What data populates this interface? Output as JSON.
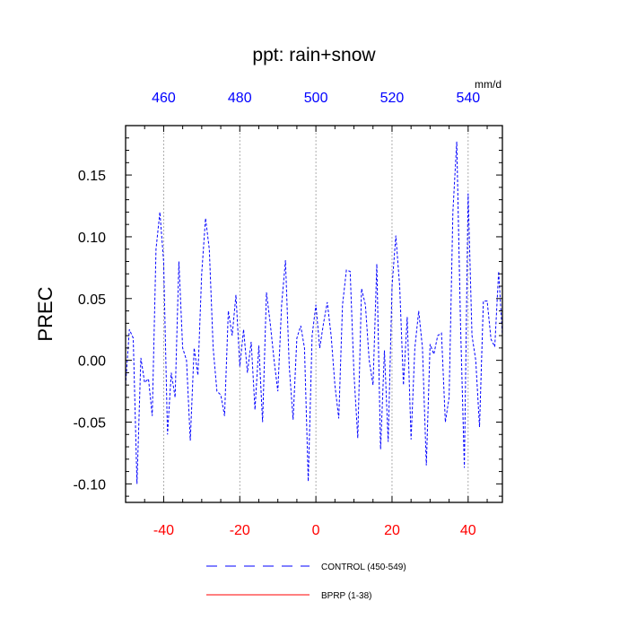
{
  "chart_data": {
    "type": "line",
    "title": "ppt: rain+snow",
    "ylabel": "PREC",
    "top_axis_units": "mm/d",
    "xlim": [
      -50,
      49
    ],
    "ylim": [
      -0.115,
      0.19
    ],
    "grid": "vertical dotted lines at bottom x ticks",
    "legend_position": "bottom-center",
    "colors": {
      "control": "#0000ff",
      "bprp": "#ff0000",
      "bottom_ticks": "#ff0000",
      "top_ticks": "#0000ff"
    },
    "bottom_ticks": [
      {
        "value": -40,
        "label": "-40"
      },
      {
        "value": -20,
        "label": "-20"
      },
      {
        "value": 0,
        "label": "0"
      },
      {
        "value": 20,
        "label": "20"
      },
      {
        "value": 40,
        "label": "40"
      }
    ],
    "top_ticks": [
      {
        "value": -40,
        "label": "460"
      },
      {
        "value": -20,
        "label": "480"
      },
      {
        "value": 0,
        "label": "500"
      },
      {
        "value": 20,
        "label": "520"
      },
      {
        "value": 40,
        "label": "540"
      }
    ],
    "y_ticks": [
      {
        "value": 0.15,
        "label": "0.15"
      },
      {
        "value": 0.1,
        "label": "0.10"
      },
      {
        "value": 0.05,
        "label": "0.05"
      },
      {
        "value": 0.0,
        "label": "0.00"
      },
      {
        "value": -0.05,
        "label": "-0.05"
      },
      {
        "value": -0.1,
        "label": "-0.10"
      }
    ],
    "series": [
      {
        "name": "CONTROL (450-549)",
        "style": "dashed",
        "color": "#0000ff",
        "x": [
          -50,
          -49,
          -48,
          -47,
          -46,
          -45,
          -44,
          -43,
          -42,
          -41,
          -40,
          -39,
          -38,
          -37,
          -36,
          -35,
          -34,
          -33,
          -32,
          -31,
          -30,
          -29,
          -28,
          -27,
          -26,
          -25,
          -24,
          -23,
          -22,
          -21,
          -20,
          -19,
          -18,
          -17,
          -16,
          -15,
          -14,
          -13,
          -12,
          -11,
          -10,
          -9,
          -8,
          -7,
          -6,
          -5,
          -4,
          -3,
          -2,
          -1,
          0,
          1,
          2,
          3,
          4,
          5,
          6,
          7,
          8,
          9,
          10,
          11,
          12,
          13,
          14,
          15,
          16,
          17,
          18,
          19,
          20,
          21,
          22,
          23,
          24,
          25,
          26,
          27,
          28,
          29,
          30,
          31,
          32,
          33,
          34,
          35,
          36,
          37,
          38,
          39,
          40,
          41,
          42,
          43,
          44,
          45,
          46,
          47,
          48,
          49
        ],
        "y": [
          -0.02,
          0.025,
          0.018,
          -0.1,
          0.002,
          -0.018,
          -0.015,
          -0.045,
          0.09,
          0.12,
          0.08,
          -0.06,
          -0.01,
          -0.03,
          0.08,
          0.01,
          0.0,
          -0.065,
          0.01,
          -0.012,
          0.07,
          0.115,
          0.09,
          0.01,
          -0.025,
          -0.028,
          -0.045,
          0.04,
          0.02,
          0.053,
          -0.005,
          0.025,
          -0.01,
          0.015,
          -0.04,
          0.012,
          -0.05,
          0.055,
          0.03,
          0.0,
          -0.025,
          0.045,
          0.081,
          -0.005,
          -0.048,
          0.018,
          0.028,
          0.01,
          -0.098,
          0.02,
          0.045,
          0.01,
          0.03,
          0.047,
          0.02,
          -0.02,
          -0.047,
          0.045,
          0.073,
          0.072,
          -0.01,
          -0.063,
          0.058,
          0.045,
          0.0,
          -0.02,
          0.078,
          -0.072,
          0.008,
          -0.066,
          0.06,
          0.101,
          0.06,
          -0.02,
          0.035,
          -0.064,
          0.01,
          0.04,
          0.01,
          -0.085,
          0.013,
          0.005,
          0.02,
          0.022,
          -0.05,
          -0.03,
          0.12,
          0.177,
          0.03,
          -0.087,
          0.135,
          0.02,
          0.0,
          -0.054,
          0.048,
          0.048,
          0.017,
          0.011,
          0.072,
          0.02
        ]
      },
      {
        "name": "BPRP (1-38)",
        "style": "solid",
        "color": "#ff0000",
        "x": [],
        "y": []
      }
    ]
  }
}
